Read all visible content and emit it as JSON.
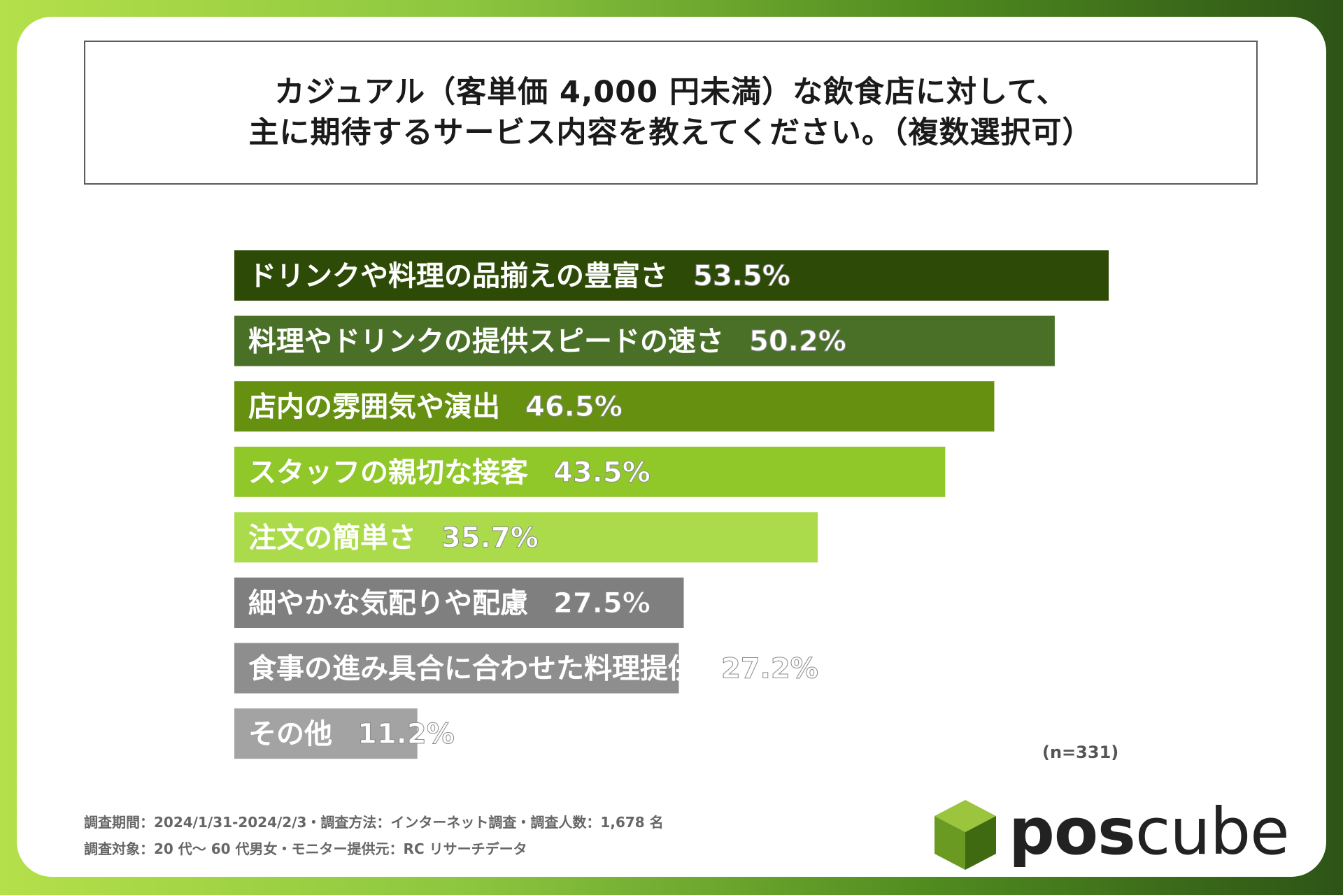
{
  "title_lines": [
    "カジュアル（客単価 4,000 円未満）な飲食店に対して、",
    "主に期待するサービス内容を教えてください。（複数選択可）"
  ],
  "sample_note": "(n=331)",
  "footnotes": [
    "調査期間：2024/1/31-2024/2/3・調査方法：インターネット調査・調査人数：1,678 名",
    "調査対象：20 代～ 60 代男女・モニター提供元：RC リサーチデータ"
  ],
  "logo": {
    "part1": "pos",
    "part2": "cube"
  },
  "chart_data": {
    "type": "bar",
    "orientation": "horizontal",
    "categories": [
      "ドリンクや料理の品揃えの豊富さ",
      "料理やドリンクの提供スピードの速さ",
      "店内の雰囲気や演出",
      "スタッフの親切な接客",
      "注文の簡単さ",
      "細やかな気配りや配慮",
      "食事の進み具合に合わせた料理提供",
      "その他"
    ],
    "values": [
      53.5,
      50.2,
      46.5,
      43.5,
      35.7,
      27.5,
      27.2,
      11.2
    ],
    "value_labels": [
      "53.5%",
      "50.2%",
      "46.5%",
      "43.5%",
      "35.7%",
      "27.5%",
      "27.2%",
      "11.2%"
    ],
    "colors": [
      "#2d4a06",
      "#4a7028",
      "#66900f",
      "#90c829",
      "#abdb4b",
      "#7f7f7f",
      "#8e8e8e",
      "#a3a3a3"
    ],
    "xlim": [
      0,
      53.5
    ],
    "grid": false,
    "legend": "none"
  }
}
